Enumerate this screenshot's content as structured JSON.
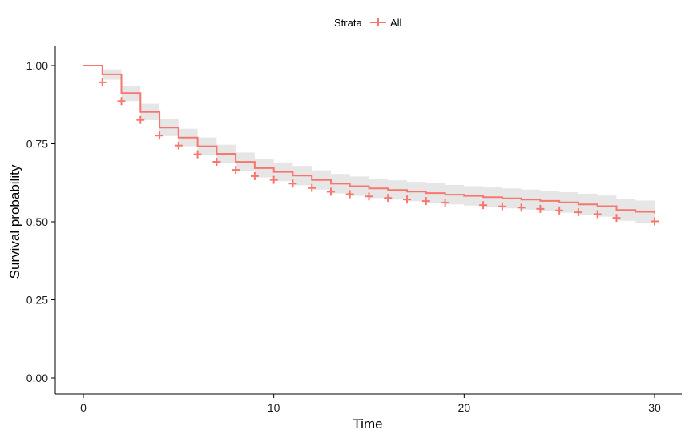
{
  "chart_data": {
    "type": "line",
    "title": "",
    "xlabel": "Time",
    "ylabel": "Survival probability",
    "xlim": [
      0,
      30
    ],
    "ylim": [
      0,
      1
    ],
    "x_ticks": [
      0,
      10,
      20,
      30
    ],
    "x_tick_labels": [
      "0",
      "10",
      "20",
      "30"
    ],
    "y_ticks": [
      0,
      0.25,
      0.5,
      0.75,
      1
    ],
    "y_tick_labels": [
      "0.00",
      "0.25",
      "0.50",
      "0.75",
      "1.00"
    ],
    "grid": false,
    "legend": {
      "placement": "top",
      "title": "Strata",
      "entries": [
        "All"
      ]
    },
    "series": [
      {
        "name": "All",
        "color": "#F8766D",
        "step": true,
        "x": [
          0,
          1,
          2,
          3,
          4,
          5,
          6,
          7,
          8,
          9,
          10,
          11,
          12,
          13,
          14,
          15,
          16,
          17,
          18,
          19,
          20,
          21,
          22,
          23,
          24,
          25,
          26,
          27,
          28,
          29,
          30
        ],
        "y": [
          1.0,
          0.972,
          0.912,
          0.852,
          0.802,
          0.77,
          0.742,
          0.718,
          0.692,
          0.672,
          0.66,
          0.648,
          0.634,
          0.622,
          0.614,
          0.607,
          0.602,
          0.597,
          0.592,
          0.587,
          0.583,
          0.579,
          0.575,
          0.571,
          0.567,
          0.562,
          0.556,
          0.55,
          0.538,
          0.532,
          0.527
        ],
        "ci_lower": [
          1.0,
          0.955,
          0.887,
          0.826,
          0.775,
          0.742,
          0.714,
          0.689,
          0.662,
          0.642,
          0.63,
          0.617,
          0.603,
          0.591,
          0.583,
          0.576,
          0.571,
          0.566,
          0.561,
          0.556,
          0.552,
          0.548,
          0.543,
          0.539,
          0.534,
          0.529,
          0.522,
          0.516,
          0.503,
          0.496,
          0.49
        ],
        "ci_upper": [
          1.0,
          0.988,
          0.936,
          0.878,
          0.829,
          0.798,
          0.77,
          0.747,
          0.722,
          0.702,
          0.69,
          0.679,
          0.665,
          0.653,
          0.645,
          0.638,
          0.633,
          0.628,
          0.623,
          0.618,
          0.614,
          0.61,
          0.607,
          0.603,
          0.6,
          0.595,
          0.59,
          0.584,
          0.573,
          0.568,
          0.564
        ],
        "censor_x": [
          1,
          2,
          3,
          4,
          5,
          6,
          7,
          8,
          9,
          10,
          11,
          12,
          13,
          14,
          15,
          16,
          17,
          18,
          19,
          21,
          22,
          23,
          24,
          25,
          26,
          27,
          28,
          30
        ]
      }
    ],
    "ci_color": "#E6E6E6",
    "axis_color": "#000000"
  }
}
